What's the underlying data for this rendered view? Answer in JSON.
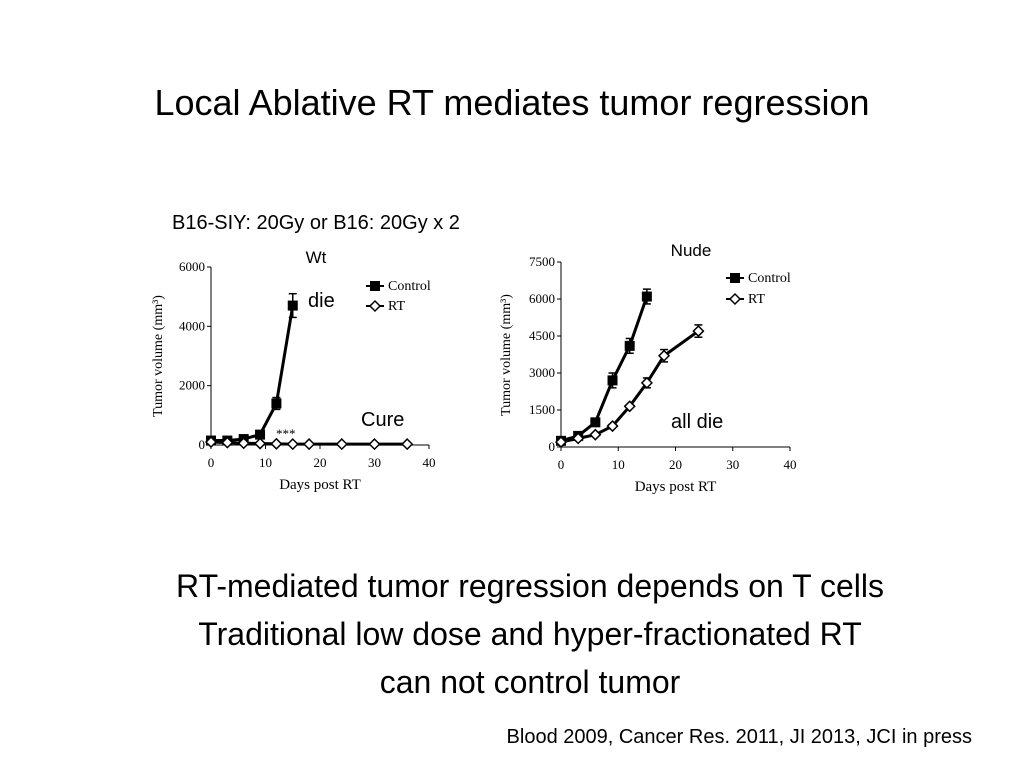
{
  "slide": {
    "title": "Local Ablative RT mediates tumor regression",
    "chart_heading": "B16-SIY: 20Gy  or B16: 20Gy x 2",
    "body_lines": [
      "RT-mediated tumor regression depends on T cells",
      "Traditional low dose and hyper-fractionated RT",
      "can not control tumor"
    ],
    "citation": "Blood 2009, Cancer Res. 2011, JI 2013, JCI in press"
  },
  "chart_data": [
    {
      "type": "line",
      "title": "Wt",
      "xlabel": "Days post RT",
      "ylabel": "Tumor volume (mm³)",
      "xlim": [
        0,
        40
      ],
      "ylim": [
        0,
        6000
      ],
      "x_ticks": [
        0,
        10,
        20,
        30,
        40
      ],
      "y_ticks": [
        0,
        2000,
        4000,
        6000
      ],
      "grid": false,
      "legend_position": "top-right",
      "series": [
        {
          "name": "Control",
          "marker": "filled-square",
          "x": [
            0,
            3,
            6,
            9,
            12,
            15
          ],
          "y": [
            150,
            150,
            200,
            350,
            1400,
            4700
          ],
          "err": [
            50,
            50,
            60,
            80,
            200,
            400
          ]
        },
        {
          "name": "RT",
          "marker": "open-diamond",
          "x": [
            0,
            3,
            6,
            9,
            12,
            15,
            18,
            24,
            30,
            36
          ],
          "y": [
            100,
            80,
            60,
            50,
            40,
            30,
            30,
            30,
            30,
            30
          ],
          "err": [
            0,
            0,
            0,
            0,
            0,
            0,
            0,
            0,
            0,
            0
          ]
        }
      ],
      "annotations": [
        "die",
        "Cure",
        "***"
      ]
    },
    {
      "type": "line",
      "title": "Nude",
      "xlabel": "Days post RT",
      "ylabel": "Tumor volume (mm³)",
      "xlim": [
        0,
        40
      ],
      "ylim": [
        0,
        7500
      ],
      "x_ticks": [
        0,
        10,
        20,
        30,
        40
      ],
      "y_ticks": [
        0,
        1500,
        3000,
        4500,
        6000,
        7500
      ],
      "grid": false,
      "legend_position": "top-right",
      "series": [
        {
          "name": "Control",
          "marker": "filled-square",
          "x": [
            0,
            3,
            6,
            9,
            12,
            15
          ],
          "y": [
            250,
            450,
            1000,
            2700,
            4100,
            6100
          ],
          "err": [
            80,
            100,
            150,
            300,
            300,
            300
          ]
        },
        {
          "name": "RT",
          "marker": "open-diamond",
          "x": [
            0,
            3,
            6,
            9,
            12,
            15,
            18,
            24
          ],
          "y": [
            200,
            350,
            500,
            850,
            1650,
            2600,
            3700,
            4700
          ],
          "err": [
            0,
            0,
            0,
            0,
            0,
            200,
            250,
            250
          ]
        }
      ],
      "annotations": [
        "all die"
      ]
    }
  ]
}
